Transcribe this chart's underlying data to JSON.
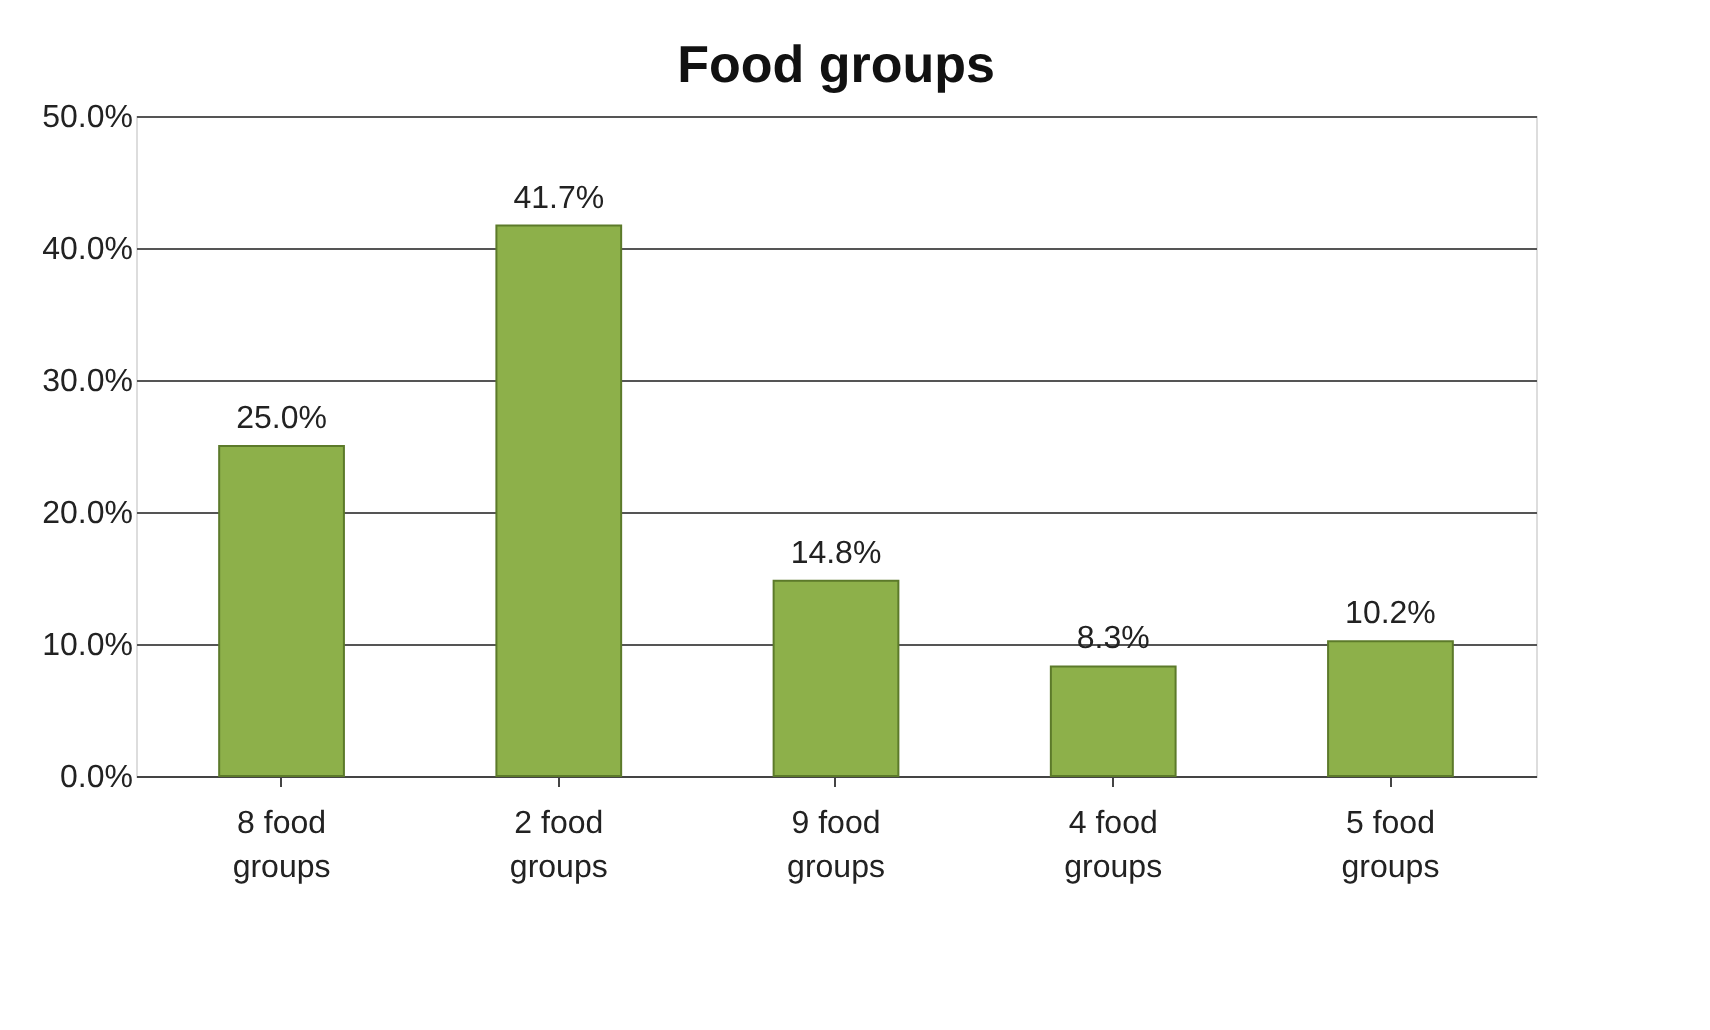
{
  "chart_data": {
    "type": "bar",
    "title": "Food groups",
    "categories": [
      "8 food groups",
      "2 food groups",
      "9 food groups",
      "4 food groups",
      "5 food groups"
    ],
    "values": [
      25.0,
      41.7,
      14.8,
      8.3,
      10.2
    ],
    "value_labels": [
      "25.0%",
      "41.7%",
      "14.8%",
      "8.3%",
      "10.2%"
    ],
    "color": "#8db04a",
    "ylim": [
      0,
      50
    ],
    "yticks": [
      {
        "value": 0,
        "label": "0.0%"
      },
      {
        "value": 10,
        "label": "10.0%"
      },
      {
        "value": 20,
        "label": "20.0%"
      },
      {
        "value": 30,
        "label": "30.0%"
      },
      {
        "value": 40,
        "label": "40.0%"
      },
      {
        "value": 50,
        "label": "50.0%"
      }
    ],
    "grid": "y"
  }
}
